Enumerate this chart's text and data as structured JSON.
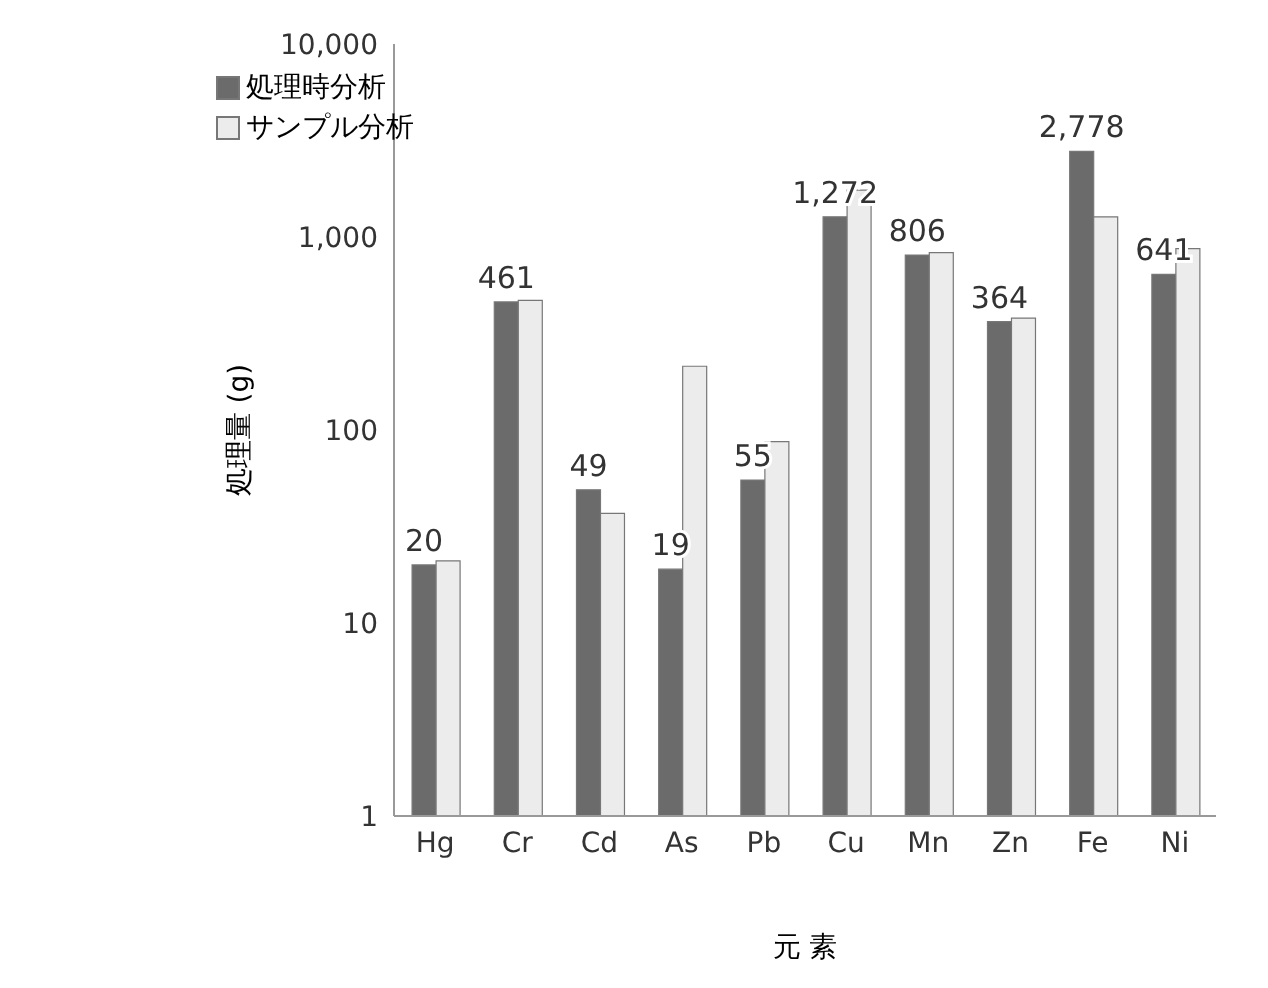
{
  "chart_data": {
    "type": "bar",
    "xlabel": "元 素",
    "ylabel": "処理量 (g)",
    "categories": [
      "Hg",
      "Cr",
      "Cd",
      "As",
      "Pb",
      "Cu",
      "Mn",
      "Zn",
      "Fe",
      "Ni"
    ],
    "series": [
      {
        "name": "処理時分析",
        "color": "#6b6b6b",
        "values": [
          20,
          461,
          49,
          19,
          55,
          1272,
          806,
          364,
          2778,
          641
        ],
        "value_labels": [
          "20",
          "461",
          "49",
          "19",
          "55",
          "1,272",
          "806",
          "364",
          "2,778",
          "641"
        ]
      },
      {
        "name": "サンプル分析",
        "color": "#ececec",
        "values": [
          21,
          470,
          37,
          214,
          87,
          1750,
          830,
          380,
          1270,
          870
        ]
      }
    ],
    "log": "y",
    "ylim": [
      1,
      10000
    ],
    "yticks": [
      1,
      10,
      100,
      {
        "value": 1000,
        "label": "1,000"
      },
      {
        "value": 10000,
        "label": "10,000"
      }
    ],
    "legend": "top left"
  }
}
